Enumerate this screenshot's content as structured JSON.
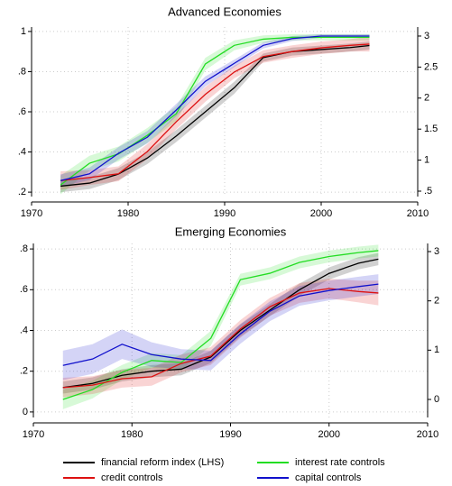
{
  "chart_data": [
    {
      "type": "line",
      "title": "Advanced Economies",
      "x": [
        1973,
        1976,
        1979,
        1982,
        1985,
        1988,
        1991,
        1994,
        1997,
        2000,
        2003,
        2005
      ],
      "xlim": [
        1970,
        2010
      ],
      "xticks": [
        1970,
        1980,
        1990,
        2000,
        2010
      ],
      "ylim": [
        0.178,
        1.022
      ],
      "yticks": [
        {
          "value": 0.2,
          "label": ".2"
        },
        {
          "value": 0.4,
          "label": ".4"
        },
        {
          "value": 0.6,
          "label": ".6"
        },
        {
          "value": 0.8,
          "label": ".8"
        },
        1
      ],
      "y2lim": [
        0.413,
        3.145
      ],
      "y2ticks": [
        {
          "value": 0.5,
          "label": ".5"
        },
        1,
        1.5,
        2,
        2.5,
        3
      ],
      "grid": true,
      "legend": "bottom",
      "series": [
        {
          "name": "financial reform index (LHS)",
          "color": "#000000",
          "axis": "y",
          "values": [
            0.23,
            0.245,
            0.29,
            0.37,
            0.48,
            0.6,
            0.72,
            0.87,
            0.9,
            0.91,
            0.92,
            0.93
          ],
          "error": [
            0.03,
            0.03,
            0.03,
            0.03,
            0.03,
            0.03,
            0.03,
            0.02,
            0.02,
            0.02,
            0.02,
            0.02
          ]
        },
        {
          "name": "interest rate controls",
          "color": "#22dd22",
          "axis": "y2",
          "values": [
            0.6,
            0.95,
            1.1,
            1.4,
            1.75,
            2.55,
            2.85,
            2.95,
            2.98,
            2.98,
            2.98,
            2.98
          ],
          "error": [
            0.15,
            0.12,
            0.12,
            0.12,
            0.12,
            0.1,
            0.08,
            0.06,
            0.05,
            0.05,
            0.05,
            0.05
          ]
        },
        {
          "name": "credit controls",
          "color": "#dd1111",
          "axis": "y2",
          "values": [
            0.67,
            0.72,
            0.78,
            1.14,
            1.62,
            2.06,
            2.42,
            2.67,
            2.75,
            2.81,
            2.85,
            2.87
          ],
          "error": [
            0.15,
            0.12,
            0.12,
            0.12,
            0.12,
            0.12,
            0.1,
            0.1,
            0.1,
            0.1,
            0.1,
            0.12
          ]
        },
        {
          "name": "capital controls",
          "color": "#1111cc",
          "axis": "y2",
          "values": [
            0.67,
            0.78,
            1.11,
            1.37,
            1.81,
            2.27,
            2.56,
            2.85,
            2.96,
            3,
            3,
            3
          ],
          "error": [
            0.1,
            0.1,
            0.1,
            0.1,
            0.1,
            0.08,
            0.06,
            0.05,
            0.04,
            0.03,
            0.03,
            0.03
          ]
        }
      ]
    },
    {
      "type": "line",
      "title": "Emerging Economies",
      "x": [
        1973,
        1976,
        1979,
        1982,
        1985,
        1988,
        1991,
        1994,
        1997,
        2000,
        2003,
        2005
      ],
      "xlim": [
        1970,
        2010
      ],
      "xticks": [
        1970,
        1980,
        1990,
        2000,
        2010
      ],
      "ylim": [
        -0.027,
        0.827
      ],
      "yticks": [
        0,
        {
          "value": 0.2,
          "label": ".2"
        },
        {
          "value": 0.4,
          "label": ".4"
        },
        {
          "value": 0.6,
          "label": ".6"
        },
        {
          "value": 0.8,
          "label": ".8"
        }
      ],
      "y2lim": [
        -0.366,
        3.165
      ],
      "y2ticks": [
        0,
        1,
        2,
        3
      ],
      "grid": true,
      "series": [
        {
          "name": "financial reform index (LHS)",
          "color": "#000000",
          "axis": "y",
          "values": [
            0.12,
            0.14,
            0.18,
            0.2,
            0.21,
            0.27,
            0.4,
            0.5,
            0.6,
            0.68,
            0.73,
            0.75
          ],
          "error": [
            0.03,
            0.03,
            0.03,
            0.03,
            0.03,
            0.03,
            0.03,
            0.03,
            0.03,
            0.03,
            0.03,
            0.03
          ]
        },
        {
          "name": "interest rate controls",
          "color": "#22dd22",
          "axis": "y2",
          "values": [
            0,
            0.2,
            0.55,
            0.79,
            0.75,
            1.24,
            2.43,
            2.56,
            2.78,
            2.9,
            2.98,
            3.02
          ],
          "error": [
            0.2,
            0.18,
            0.15,
            0.15,
            0.15,
            0.15,
            0.12,
            0.12,
            0.12,
            0.12,
            0.12,
            0.12
          ]
        },
        {
          "name": "credit controls",
          "color": "#dd1111",
          "axis": "y2",
          "values": [
            0.24,
            0.29,
            0.42,
            0.46,
            0.73,
            0.88,
            1.43,
            1.88,
            2.16,
            2.25,
            2.19,
            2.16
          ],
          "error": [
            0.2,
            0.18,
            0.18,
            0.18,
            0.18,
            0.18,
            0.18,
            0.18,
            0.2,
            0.2,
            0.22,
            0.25
          ]
        },
        {
          "name": "capital controls",
          "color": "#1111cc",
          "axis": "y2",
          "values": [
            0.69,
            0.82,
            1.12,
            0.91,
            0.82,
            0.79,
            1.33,
            1.79,
            2.1,
            2.21,
            2.29,
            2.34
          ],
          "error": [
            0.3,
            0.3,
            0.3,
            0.25,
            0.2,
            0.2,
            0.2,
            0.2,
            0.2,
            0.2,
            0.2,
            0.2
          ]
        }
      ]
    }
  ]
}
